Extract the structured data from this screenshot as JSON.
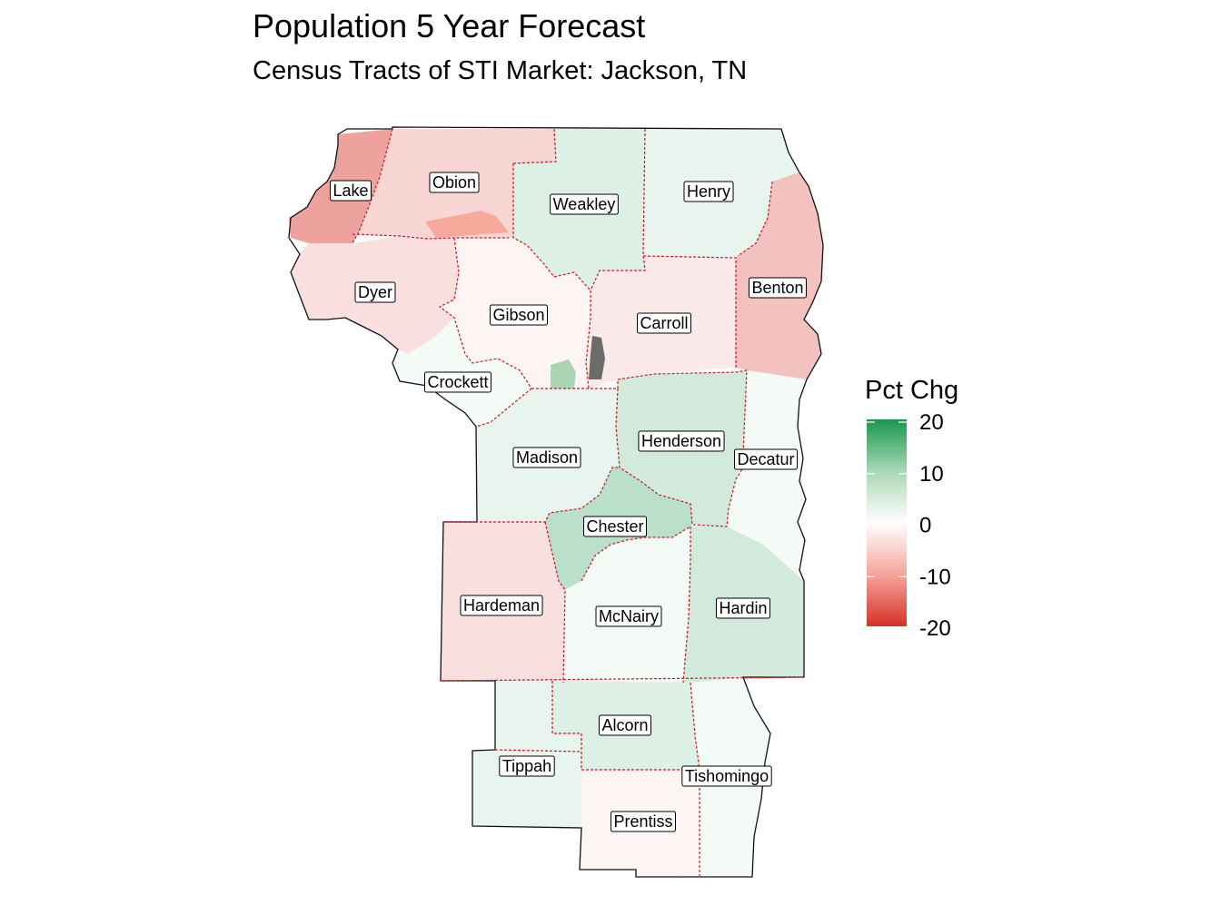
{
  "title": "Population 5 Year Forecast",
  "subtitle": "Census Tracts of STI Market: Jackson, TN",
  "legend": {
    "title": "Pct Chg",
    "ticks": [
      "20",
      "10",
      "0",
      "-10",
      "-20"
    ],
    "colors": {
      "high": "#1a9850",
      "mid": "#ffffff",
      "low": "#d73027"
    }
  },
  "counties": [
    {
      "name": "Lake",
      "pct": -9
    },
    {
      "name": "Obion",
      "pct": -4
    },
    {
      "name": "Weakley",
      "pct": 3
    },
    {
      "name": "Henry",
      "pct": 2
    },
    {
      "name": "Dyer",
      "pct": -3
    },
    {
      "name": "Gibson",
      "pct": -1
    },
    {
      "name": "Carroll",
      "pct": -2
    },
    {
      "name": "Benton",
      "pct": -6
    },
    {
      "name": "Crockett",
      "pct": 1
    },
    {
      "name": "Madison",
      "pct": 2
    },
    {
      "name": "Henderson",
      "pct": 4
    },
    {
      "name": "Decatur",
      "pct": 1
    },
    {
      "name": "Chester",
      "pct": 6
    },
    {
      "name": "Hardeman",
      "pct": -3
    },
    {
      "name": "McNairy",
      "pct": 1
    },
    {
      "name": "Hardin",
      "pct": 4
    },
    {
      "name": "Alcorn",
      "pct": 3
    },
    {
      "name": "Tippah",
      "pct": 2
    },
    {
      "name": "Tishomingo",
      "pct": 1
    },
    {
      "name": "Prentiss",
      "pct": -1
    }
  ]
}
